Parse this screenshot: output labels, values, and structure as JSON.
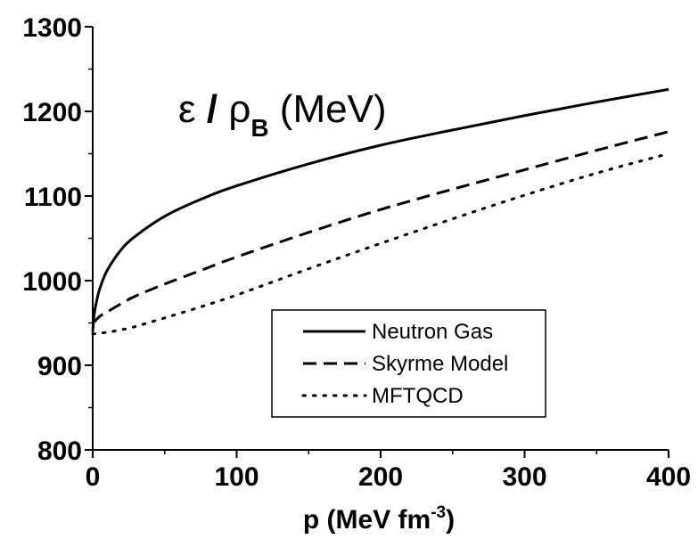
{
  "chart_data": {
    "type": "line",
    "xlabel": "p (MeV fm",
    "xlabel_superscript": "-3",
    "xlabel_close": ")",
    "ylabel": "",
    "xlim": [
      0,
      400
    ],
    "ylim": [
      800,
      1300
    ],
    "xticks": [
      0,
      100,
      200,
      300,
      400
    ],
    "yticks": [
      800,
      900,
      1000,
      1100,
      1200,
      1300
    ],
    "x_tick_labels": [
      "0",
      "100",
      "200",
      "300",
      "400"
    ],
    "y_tick_labels": [
      "800",
      "900",
      "1000",
      "1100",
      "1200",
      "1300"
    ],
    "grid": false,
    "legend_position": "center-right",
    "annotation": {
      "epsilon": "ε",
      "slash": " / ",
      "rho": "ρ",
      "subscript": "B",
      "unit": " (MeV)"
    },
    "series": [
      {
        "name": "Neutron Gas",
        "style": "solid",
        "x": [
          0,
          1,
          3,
          5,
          10,
          20,
          30,
          50,
          75,
          100,
          150,
          200,
          250,
          300,
          350,
          400
        ],
        "values": [
          940,
          960,
          978,
          991,
          1012,
          1037,
          1053,
          1076,
          1096,
          1112,
          1138,
          1160,
          1178,
          1195,
          1211,
          1226
        ]
      },
      {
        "name": "Skyrme Model",
        "style": "dashed",
        "x": [
          0,
          2,
          5,
          10,
          20,
          30,
          50,
          75,
          100,
          150,
          200,
          250,
          300,
          350,
          400
        ],
        "values": [
          950,
          953,
          958,
          963,
          973,
          982,
          996,
          1012,
          1028,
          1057,
          1084,
          1108,
          1131,
          1154,
          1176
        ]
      },
      {
        "name": "MFTQCD",
        "style": "dotted",
        "x": [
          0,
          10,
          20,
          30,
          50,
          75,
          100,
          150,
          200,
          250,
          300,
          350,
          400
        ],
        "values": [
          937,
          939,
          942,
          946,
          956,
          969,
          983,
          1014,
          1044,
          1073,
          1101,
          1127,
          1150
        ]
      }
    ],
    "colors": {
      "line": "#000000",
      "background": "#ffffff"
    }
  }
}
